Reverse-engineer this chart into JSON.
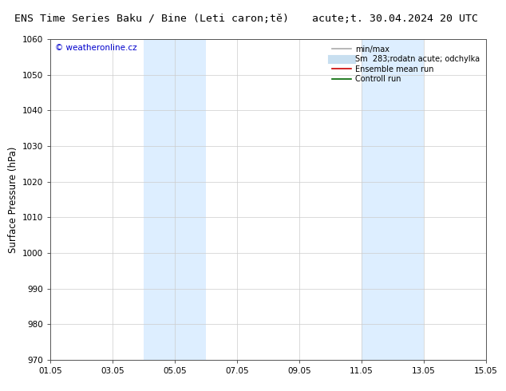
{
  "title_left": "ENS Time Series Baku / Bine (Leti caron;tě)",
  "title_right": "acute;t. 30.04.2024 20 UTC",
  "ylabel": "Surface Pressure (hPa)",
  "ylim": [
    970,
    1060
  ],
  "yticks": [
    970,
    980,
    990,
    1000,
    1010,
    1020,
    1030,
    1040,
    1050,
    1060
  ],
  "xtick_labels": [
    "01.05",
    "03.05",
    "05.05",
    "07.05",
    "09.05",
    "11.05",
    "13.05",
    "15.05"
  ],
  "xtick_positions": [
    0,
    2,
    4,
    6,
    8,
    10,
    12,
    14
  ],
  "xlim": [
    0,
    14
  ],
  "shaded_bands": [
    {
      "x_start": 3.0,
      "x_end": 5.0,
      "color": "#ddeeff"
    },
    {
      "x_start": 10.0,
      "x_end": 12.0,
      "color": "#ddeeff"
    }
  ],
  "watermark_text": "© weatheronline.cz",
  "watermark_color": "#0000cc",
  "legend_entries": [
    {
      "label": "min/max",
      "color": "#aaaaaa",
      "lw": 1.2
    },
    {
      "label": "Sm  283;rodatn acute; odchylka",
      "color": "#c8dff0",
      "lw": 8
    },
    {
      "label": "Ensemble mean run",
      "color": "#cc0000",
      "lw": 1.2
    },
    {
      "label": "Controll run",
      "color": "#006600",
      "lw": 1.2
    }
  ],
  "background_color": "#ffffff",
  "plot_bg_color": "#ffffff",
  "grid_color": "#cccccc",
  "tick_fontsize": 7.5,
  "label_fontsize": 8.5,
  "title_fontsize": 9.5
}
